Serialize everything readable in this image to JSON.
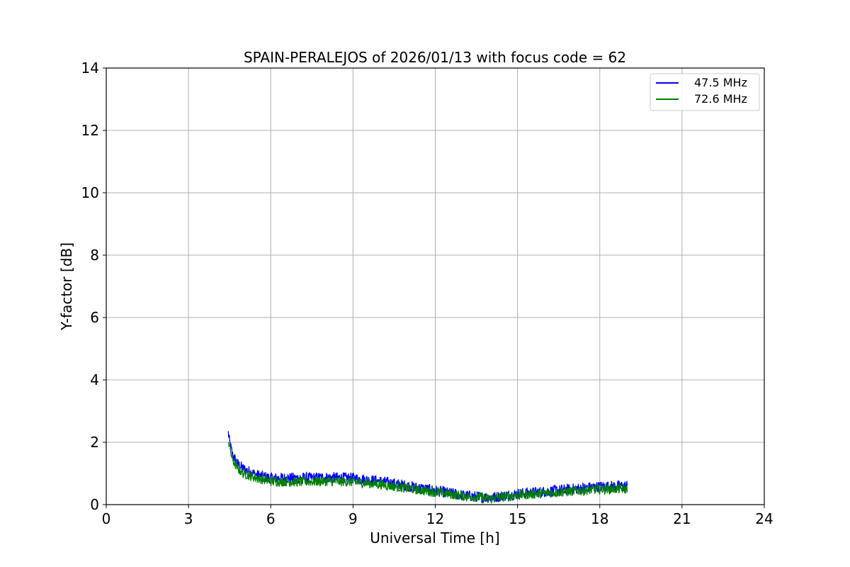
{
  "chart_data": {
    "type": "line",
    "title": "SPAIN-PERALEJOS of 2026/01/13 with focus code = 62",
    "xlabel": "Universal Time [h]",
    "ylabel": "Y-factor [dB]",
    "xlim": [
      0,
      24
    ],
    "ylim": [
      0,
      14
    ],
    "xticks": [
      0,
      3,
      6,
      9,
      12,
      15,
      18,
      21,
      24
    ],
    "yticks": [
      0,
      2,
      4,
      6,
      8,
      10,
      12,
      14
    ],
    "grid": true,
    "legend_position": "top-right",
    "series": [
      {
        "name": "47.5 MHz",
        "color": "#0000ff",
        "band": 0.18,
        "x": [
          4.45,
          4.5,
          4.6,
          4.8,
          5.0,
          5.5,
          6.0,
          7.0,
          8.0,
          9.0,
          10.0,
          11.0,
          12.0,
          13.0,
          14.0,
          15.0,
          16.0,
          17.0,
          18.0,
          19.0
        ],
        "y": [
          2.3,
          2.0,
          1.6,
          1.3,
          1.15,
          0.95,
          0.85,
          0.85,
          0.87,
          0.85,
          0.75,
          0.6,
          0.45,
          0.3,
          0.22,
          0.35,
          0.42,
          0.5,
          0.58,
          0.6
        ]
      },
      {
        "name": "72.6 MHz",
        "color": "#008000",
        "band": 0.16,
        "x": [
          4.45,
          4.5,
          4.6,
          4.8,
          5.0,
          5.5,
          6.0,
          7.0,
          8.0,
          9.0,
          10.0,
          11.0,
          12.0,
          13.0,
          14.0,
          15.0,
          16.0,
          17.0,
          18.0,
          19.0
        ],
        "y": [
          2.1,
          1.85,
          1.45,
          1.15,
          1.0,
          0.85,
          0.75,
          0.73,
          0.75,
          0.73,
          0.65,
          0.52,
          0.4,
          0.28,
          0.2,
          0.3,
          0.37,
          0.43,
          0.5,
          0.5
        ]
      }
    ]
  }
}
